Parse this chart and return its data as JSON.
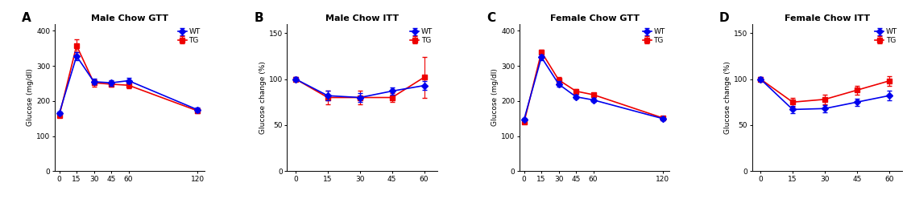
{
  "panels": [
    {
      "label": "A",
      "title": "Male Chow GTT",
      "ylabel": "Glucose (mg/dl)",
      "xticks": [
        0,
        15,
        30,
        45,
        60,
        120
      ],
      "ylim": [
        0,
        420
      ],
      "yticks": [
        0,
        100,
        200,
        300,
        400
      ],
      "wt_x": [
        0,
        15,
        30,
        45,
        60,
        120
      ],
      "wt_y": [
        165,
        328,
        255,
        252,
        258,
        175
      ],
      "wt_err": [
        4,
        12,
        8,
        8,
        8,
        7
      ],
      "tg_x": [
        0,
        15,
        30,
        45,
        60,
        120
      ],
      "tg_y": [
        158,
        358,
        252,
        248,
        245,
        172
      ],
      "tg_err": [
        4,
        18,
        10,
        8,
        8,
        7
      ],
      "type": "GTT"
    },
    {
      "label": "B",
      "title": "Male Chow ITT",
      "ylabel": "Glucose change (%)",
      "xticks": [
        0,
        15,
        30,
        45,
        60
      ],
      "ylim": [
        0,
        160
      ],
      "yticks": [
        0,
        50,
        100,
        150
      ],
      "wt_x": [
        0,
        15,
        30,
        45,
        60
      ],
      "wt_y": [
        100,
        82,
        80,
        87,
        93
      ],
      "wt_err": [
        2,
        5,
        5,
        4,
        5
      ],
      "tg_x": [
        0,
        15,
        30,
        45,
        60
      ],
      "tg_y": [
        100,
        80,
        80,
        80,
        102
      ],
      "tg_err": [
        2,
        7,
        7,
        5,
        22
      ],
      "type": "ITT"
    },
    {
      "label": "C",
      "title": "Female Chow GTT",
      "ylabel": "Glucose (mg/dl)",
      "xticks": [
        0,
        15,
        30,
        45,
        60,
        120
      ],
      "ylim": [
        0,
        420
      ],
      "yticks": [
        0,
        100,
        200,
        300,
        400
      ],
      "wt_x": [
        0,
        15,
        30,
        45,
        60,
        120
      ],
      "wt_y": [
        148,
        325,
        248,
        212,
        203,
        150
      ],
      "wt_err": [
        4,
        8,
        8,
        6,
        5,
        5
      ],
      "tg_x": [
        0,
        15,
        30,
        45,
        60,
        120
      ],
      "tg_y": [
        140,
        340,
        260,
        228,
        218,
        152
      ],
      "tg_err": [
        4,
        6,
        8,
        6,
        5,
        5
      ],
      "type": "GTT"
    },
    {
      "label": "D",
      "title": "Female Chow ITT",
      "ylabel": "Glucose change (%)",
      "xticks": [
        0,
        15,
        30,
        45,
        60
      ],
      "ylim": [
        0,
        160
      ],
      "yticks": [
        0,
        50,
        100,
        150
      ],
      "wt_x": [
        0,
        15,
        30,
        45,
        60
      ],
      "wt_y": [
        100,
        67,
        68,
        75,
        82
      ],
      "wt_err": [
        2,
        4,
        4,
        4,
        5
      ],
      "tg_x": [
        0,
        15,
        30,
        45,
        60
      ],
      "tg_y": [
        100,
        75,
        78,
        88,
        98
      ],
      "tg_err": [
        2,
        5,
        5,
        5,
        5
      ],
      "type": "ITT"
    }
  ],
  "wt_color": "#0000EE",
  "tg_color": "#EE0000",
  "marker_wt": "D",
  "marker_tg": "s",
  "markersize": 4,
  "linewidth": 1.2,
  "capsize": 2,
  "elinewidth": 0.8,
  "fontsize_title": 8,
  "fontsize_label": 6.5,
  "fontsize_tick": 6.5,
  "fontsize_legend": 6.5,
  "fontsize_panel_label": 11
}
